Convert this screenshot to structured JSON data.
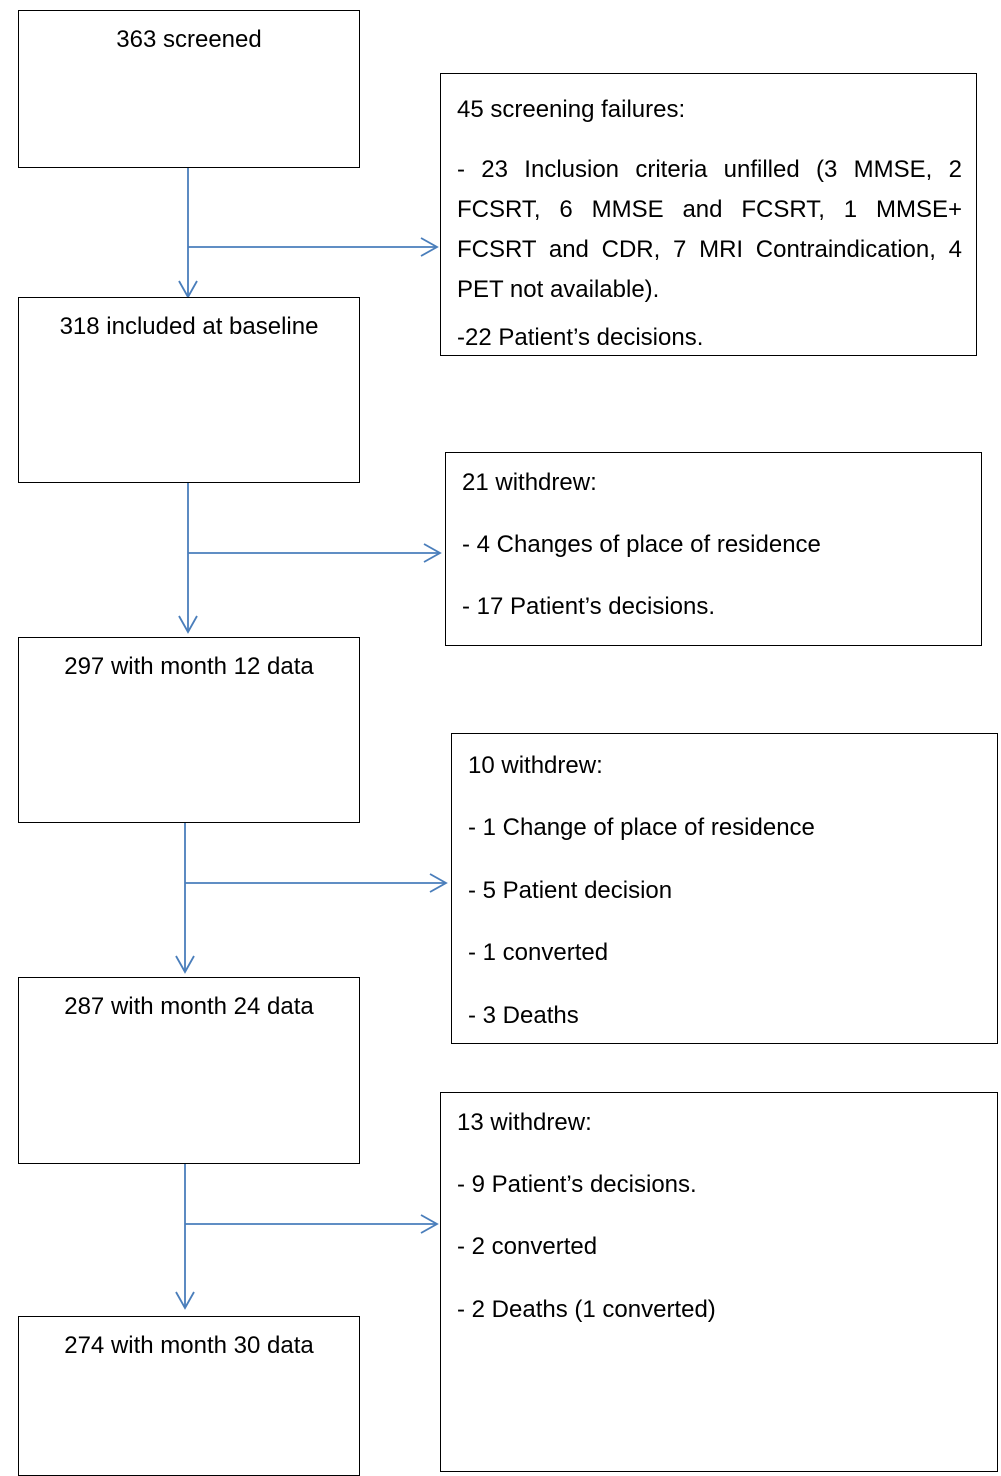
{
  "nodes": [
    {
      "label": "363 screened"
    },
    {
      "label": "318 included at baseline"
    },
    {
      "label": "297 with month 12 data"
    },
    {
      "label": "287 with month 24 data"
    },
    {
      "label": "274 with month 30 data"
    }
  ],
  "exclusions": [
    {
      "title": "45 screening failures:",
      "items": [
        "- 23 Inclusion criteria unfilled (3 MMSE, 2 FCSRT, 6 MMSE and FCSRT, 1 MMSE+ FCSRT and CDR, 7 MRI Contraindication, 4 PET not available).",
        "-22 Patient’s decisions."
      ]
    },
    {
      "title": "21 withdrew:",
      "items": [
        "- 4 Changes of place of residence",
        "- 17 Patient’s decisions."
      ]
    },
    {
      "title": "10 withdrew:",
      "items": [
        "-  1 Change of place of residence",
        "-  5 Patient decision",
        "- 1 converted",
        "- 3 Deaths"
      ]
    },
    {
      "title": "13 withdrew:",
      "items": [
        "- 9 Patient’s decisions.",
        "- 2 converted",
        "- 2 Deaths (1 converted)"
      ]
    }
  ]
}
